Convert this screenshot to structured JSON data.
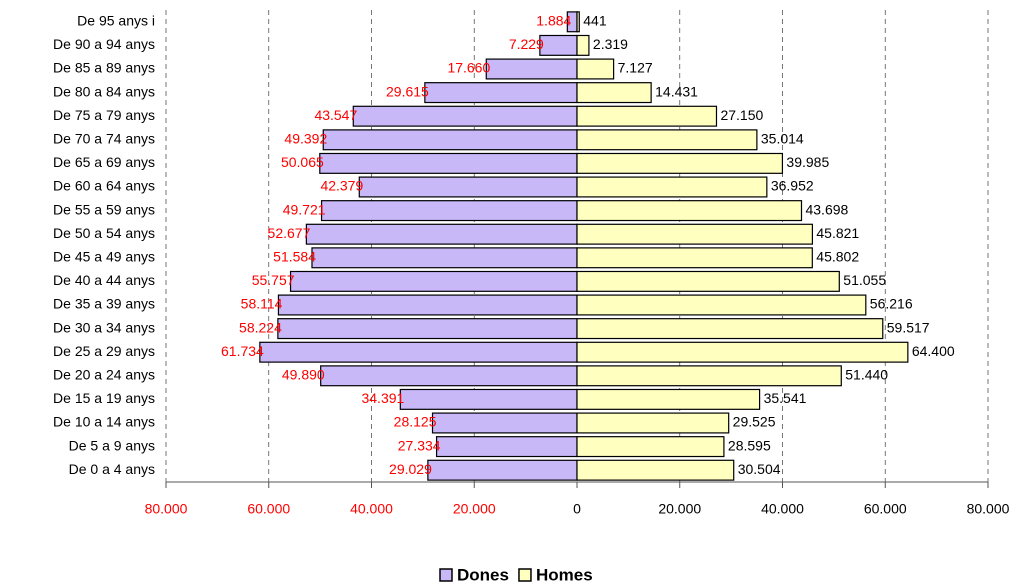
{
  "chart_data": {
    "type": "pyramid",
    "categories": [
      "De 95 anys i",
      "De 90 a 94 anys",
      "De 85 a 89 anys",
      "De 80 a 84 anys",
      "De 75 a 79 anys",
      "De 70 a 74 anys",
      "De 65 a 69 anys",
      "De 60 a 64 anys",
      "De 55 a 59 anys",
      "De 50 a 54 anys",
      "De 45 a 49 anys",
      "De 40 a 44 anys",
      "De 35 a 39 anys",
      "De 30 a 34 anys",
      "De 25 a 29 anys",
      "De 20 a 24 anys",
      "De 15 a 19 anys",
      "De 10 a 14 anys",
      "De 5 a 9 anys",
      "De 0 a 4 anys"
    ],
    "series": [
      {
        "name": "Dones",
        "color": "#c8b8f8",
        "label_color": "#ff0000",
        "side": "left",
        "values": [
          1884,
          7229,
          17660,
          29615,
          43547,
          49392,
          50065,
          42379,
          49721,
          52677,
          51584,
          55757,
          58114,
          58224,
          61734,
          49890,
          34391,
          28125,
          27334,
          29029
        ],
        "value_labels": [
          "1.884",
          "7.229",
          "17.660",
          "29.615",
          "43.547",
          "49.392",
          "50.065",
          "42.379",
          "49.721",
          "52.677",
          "51.584",
          "55.757",
          "58.114",
          "58.224",
          "61.734",
          "49.890",
          "34.391",
          "28.125",
          "27.334",
          "29.029"
        ]
      },
      {
        "name": "Homes",
        "color": "#ffffc0",
        "label_color": "#000000",
        "side": "right",
        "values": [
          441,
          2319,
          7127,
          14431,
          27150,
          35014,
          39985,
          36952,
          43698,
          45821,
          45802,
          51055,
          56216,
          59517,
          64400,
          51440,
          35541,
          29525,
          28595,
          30504
        ],
        "value_labels": [
          "441",
          "2.319",
          "7.127",
          "14.431",
          "27.150",
          "35.014",
          "39.985",
          "36.952",
          "43.698",
          "45.821",
          "45.802",
          "51.055",
          "56.216",
          "59.517",
          "64.400",
          "51.440",
          "35.541",
          "29.525",
          "28.595",
          "30.504"
        ]
      }
    ],
    "xlim": [
      -80000,
      80000
    ],
    "xticks": [
      {
        "value": -80000,
        "label": "80.000"
      },
      {
        "value": -60000,
        "label": "60.000"
      },
      {
        "value": -40000,
        "label": "40.000"
      },
      {
        "value": -20000,
        "label": "20.000"
      },
      0,
      {
        "value": 20000,
        "label": "20.000"
      },
      {
        "value": 40000,
        "label": "40.000"
      },
      {
        "value": 60000,
        "label": "60.000"
      },
      {
        "value": 80000,
        "label": "80.000"
      }
    ],
    "grid": true,
    "legend": "bottom"
  }
}
